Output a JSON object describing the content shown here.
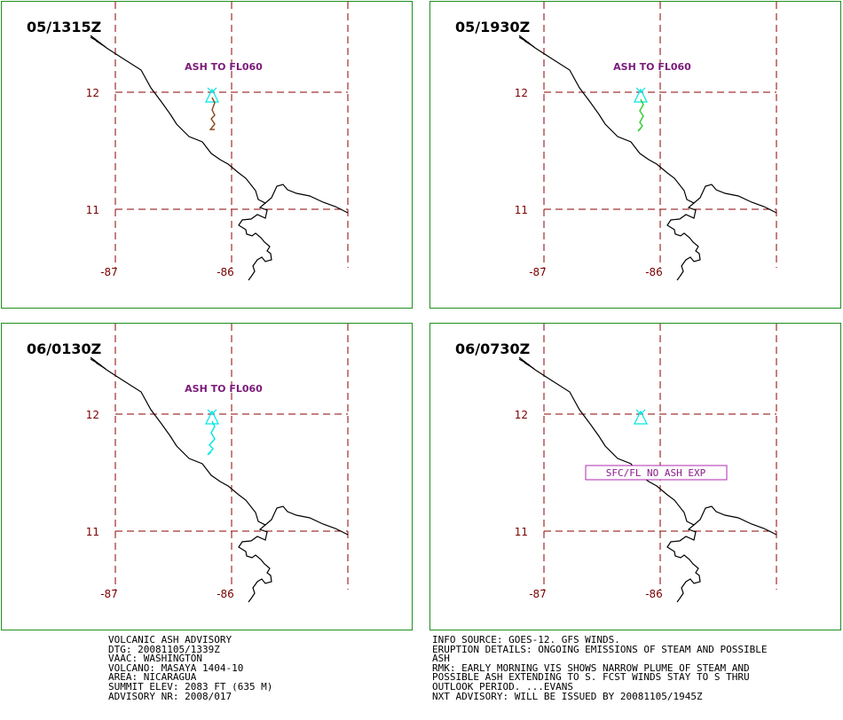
{
  "panels": [
    {
      "time": "05/1315Z",
      "label": "ASH TO FL060",
      "label_style": "plain",
      "plume": "brown",
      "lat_labels": [
        "12",
        "11"
      ],
      "lon_labels": [
        "-87",
        "-86"
      ]
    },
    {
      "time": "05/1930Z",
      "label": "ASH TO FL060",
      "label_style": "plain",
      "plume": "green",
      "lat_labels": [
        "12",
        "11"
      ],
      "lon_labels": [
        "-87",
        "-86"
      ]
    },
    {
      "time": "06/0130Z",
      "label": "ASH TO FL060",
      "label_style": "plain",
      "plume": "cyan",
      "lat_labels": [
        "12",
        "11"
      ],
      "lon_labels": [
        "-87",
        "-86"
      ]
    },
    {
      "time": "06/0730Z",
      "label": "SFC/FL NO ASH EXP",
      "label_style": "boxed",
      "plume": "none",
      "lat_labels": [
        "12",
        "11"
      ],
      "lon_labels": [
        "-87",
        "-86"
      ]
    }
  ],
  "colors": {
    "panel_border": "#1e8f1e",
    "grid": "#8b0000",
    "coast": "#000000",
    "volcano": "#00e5e5",
    "plume_brown": "#8b4a1a",
    "plume_green": "#2ecc2e",
    "plume_cyan": "#00e5e5",
    "label": "#7a1a7a"
  },
  "advisory_left": [
    "VOLCANIC ASH ADVISORY",
    "DTG: 20081105/1339Z",
    "VAAC: WASHINGTON",
    "VOLCANO: MASAYA 1404-10",
    "AREA: NICARAGUA",
    "SUMMIT ELEV: 2083 FT (635 M)",
    "ADVISORY NR: 2008/017"
  ],
  "advisory_right": [
    "INFO SOURCE: GOES-12. GFS WINDS.",
    "ERUPTION DETAILS: ONGOING EMISSIONS OF STEAM AND POSSIBLE",
    "ASH",
    "RMK: EARLY MORNING VIS SHOWS NARROW PLUME OF STEAM AND",
    "POSSIBLE ASH EXTENDING TO S. FCST WINDS STAY TO S THRU",
    "OUTLOOK PERIOD. ...EVANS",
    "NXT ADVISORY: WILL BE ISSUED BY 20081105/1945Z"
  ]
}
